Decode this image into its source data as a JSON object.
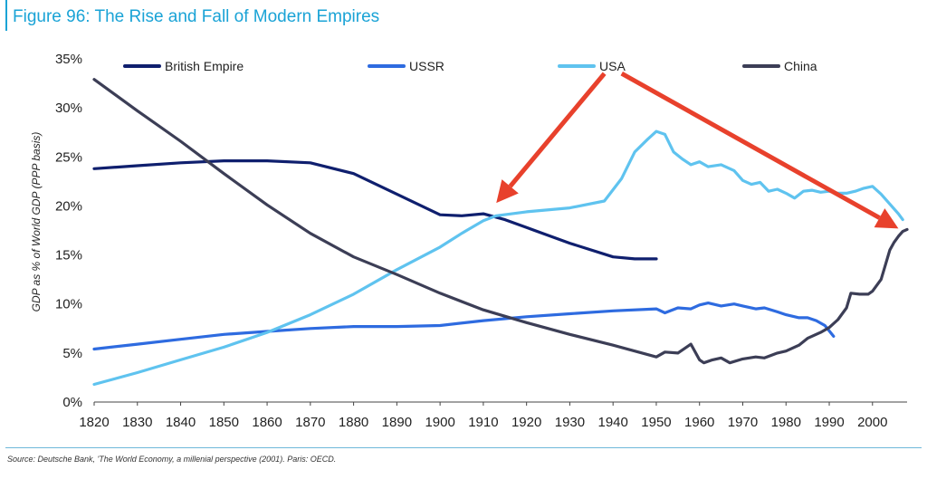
{
  "header": {
    "title": "Figure 96: The Rise and Fall of Modern Empires"
  },
  "footer": {
    "source": "Source: Deutsche Bank, 'The World Economy, a millenial perspective (2001). Paris: OECD."
  },
  "chart_data": {
    "type": "line",
    "title": "Figure 96: The Rise and Fall of Modern Empires",
    "xlabel": "",
    "ylabel": "GDP as % of World GDP (PPP basis)",
    "xlim": [
      1820,
      2008
    ],
    "ylim": [
      0,
      35
    ],
    "x_ticks": [
      1820,
      1830,
      1840,
      1850,
      1860,
      1870,
      1880,
      1890,
      1900,
      1910,
      1920,
      1930,
      1940,
      1950,
      1960,
      1970,
      1980,
      1990,
      2000
    ],
    "y_ticks": [
      0,
      5,
      10,
      15,
      20,
      25,
      30,
      35
    ],
    "y_tick_format": "percent",
    "grid": false,
    "legend_position": "top",
    "annotations": [
      {
        "type": "arrow",
        "color": "#e8412c",
        "from": [
          1938,
          33.5
        ],
        "to": [
          1913,
          20.3
        ]
      },
      {
        "type": "arrow",
        "color": "#e8412c",
        "from": [
          1942,
          33.5
        ],
        "to": [
          2006,
          17.7
        ]
      }
    ],
    "series": [
      {
        "name": "British Empire",
        "color": "#0f1f6e",
        "points": [
          [
            1820,
            23.8
          ],
          [
            1830,
            24.1
          ],
          [
            1840,
            24.4
          ],
          [
            1850,
            24.6
          ],
          [
            1860,
            24.6
          ],
          [
            1870,
            24.4
          ],
          [
            1880,
            23.3
          ],
          [
            1890,
            21.2
          ],
          [
            1900,
            19.1
          ],
          [
            1905,
            19.0
          ],
          [
            1910,
            19.2
          ],
          [
            1915,
            18.6
          ],
          [
            1920,
            17.8
          ],
          [
            1930,
            16.2
          ],
          [
            1940,
            14.8
          ],
          [
            1945,
            14.6
          ],
          [
            1950,
            14.6
          ]
        ]
      },
      {
        "name": "USSR",
        "color": "#2e6be0",
        "points": [
          [
            1820,
            5.4
          ],
          [
            1830,
            5.9
          ],
          [
            1840,
            6.4
          ],
          [
            1850,
            6.9
          ],
          [
            1860,
            7.2
          ],
          [
            1870,
            7.5
          ],
          [
            1880,
            7.7
          ],
          [
            1890,
            7.7
          ],
          [
            1900,
            7.8
          ],
          [
            1910,
            8.3
          ],
          [
            1920,
            8.7
          ],
          [
            1930,
            9.0
          ],
          [
            1940,
            9.3
          ],
          [
            1950,
            9.5
          ],
          [
            1952,
            9.1
          ],
          [
            1955,
            9.6
          ],
          [
            1958,
            9.5
          ],
          [
            1960,
            9.9
          ],
          [
            1962,
            10.1
          ],
          [
            1965,
            9.8
          ],
          [
            1968,
            10.0
          ],
          [
            1970,
            9.8
          ],
          [
            1973,
            9.5
          ],
          [
            1975,
            9.6
          ],
          [
            1978,
            9.2
          ],
          [
            1980,
            8.9
          ],
          [
            1983,
            8.6
          ],
          [
            1985,
            8.6
          ],
          [
            1987,
            8.3
          ],
          [
            1989,
            7.8
          ],
          [
            1991,
            6.7
          ]
        ]
      },
      {
        "name": "USA",
        "color": "#5fc3ef",
        "points": [
          [
            1820,
            1.8
          ],
          [
            1830,
            3.0
          ],
          [
            1840,
            4.3
          ],
          [
            1850,
            5.6
          ],
          [
            1860,
            7.1
          ],
          [
            1870,
            8.9
          ],
          [
            1880,
            11.0
          ],
          [
            1890,
            13.5
          ],
          [
            1900,
            15.8
          ],
          [
            1905,
            17.2
          ],
          [
            1910,
            18.5
          ],
          [
            1913,
            19.0
          ],
          [
            1920,
            19.4
          ],
          [
            1930,
            19.8
          ],
          [
            1938,
            20.5
          ],
          [
            1942,
            22.8
          ],
          [
            1945,
            25.5
          ],
          [
            1948,
            26.8
          ],
          [
            1950,
            27.6
          ],
          [
            1952,
            27.3
          ],
          [
            1954,
            25.5
          ],
          [
            1956,
            24.8
          ],
          [
            1958,
            24.2
          ],
          [
            1960,
            24.5
          ],
          [
            1962,
            24.0
          ],
          [
            1965,
            24.2
          ],
          [
            1968,
            23.6
          ],
          [
            1970,
            22.6
          ],
          [
            1972,
            22.2
          ],
          [
            1974,
            22.4
          ],
          [
            1976,
            21.5
          ],
          [
            1978,
            21.7
          ],
          [
            1980,
            21.3
          ],
          [
            1982,
            20.8
          ],
          [
            1984,
            21.5
          ],
          [
            1986,
            21.6
          ],
          [
            1988,
            21.4
          ],
          [
            1990,
            21.5
          ],
          [
            1992,
            21.3
          ],
          [
            1994,
            21.3
          ],
          [
            1996,
            21.5
          ],
          [
            1998,
            21.8
          ],
          [
            2000,
            22.0
          ],
          [
            2002,
            21.2
          ],
          [
            2004,
            20.2
          ],
          [
            2006,
            19.2
          ],
          [
            2007,
            18.6
          ]
        ]
      },
      {
        "name": "China",
        "color": "#3c3e56",
        "points": [
          [
            1820,
            32.9
          ],
          [
            1830,
            29.7
          ],
          [
            1840,
            26.6
          ],
          [
            1850,
            23.3
          ],
          [
            1860,
            20.1
          ],
          [
            1870,
            17.2
          ],
          [
            1880,
            14.8
          ],
          [
            1890,
            13.0
          ],
          [
            1900,
            11.1
          ],
          [
            1910,
            9.4
          ],
          [
            1920,
            8.1
          ],
          [
            1930,
            6.9
          ],
          [
            1940,
            5.8
          ],
          [
            1950,
            4.6
          ],
          [
            1952,
            5.1
          ],
          [
            1955,
            5.0
          ],
          [
            1958,
            5.9
          ],
          [
            1960,
            4.3
          ],
          [
            1961,
            4.0
          ],
          [
            1963,
            4.3
          ],
          [
            1965,
            4.5
          ],
          [
            1967,
            4.0
          ],
          [
            1970,
            4.4
          ],
          [
            1973,
            4.6
          ],
          [
            1975,
            4.5
          ],
          [
            1978,
            5.0
          ],
          [
            1980,
            5.2
          ],
          [
            1983,
            5.8
          ],
          [
            1985,
            6.5
          ],
          [
            1988,
            7.1
          ],
          [
            1990,
            7.6
          ],
          [
            1992,
            8.4
          ],
          [
            1994,
            9.6
          ],
          [
            1995,
            11.1
          ],
          [
            1997,
            11.0
          ],
          [
            1999,
            11.0
          ],
          [
            2000,
            11.3
          ],
          [
            2002,
            12.5
          ],
          [
            2003,
            14.0
          ],
          [
            2004,
            15.5
          ],
          [
            2005,
            16.3
          ],
          [
            2006,
            16.9
          ],
          [
            2007,
            17.4
          ],
          [
            2008,
            17.6
          ]
        ]
      }
    ]
  }
}
